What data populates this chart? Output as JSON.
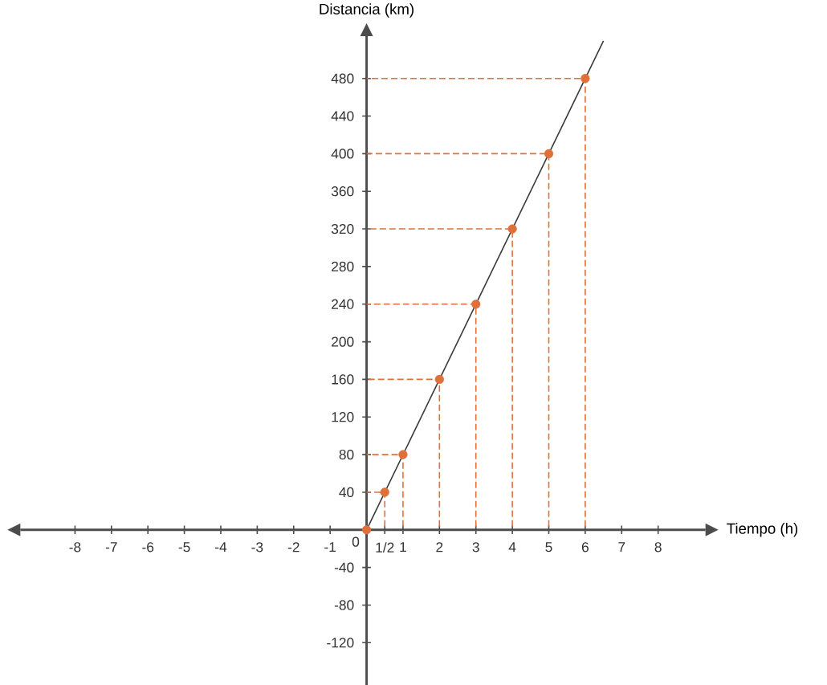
{
  "chart_data": {
    "type": "line",
    "xlabel": "Tiempo (h)",
    "ylabel": "Distancia (km)",
    "xlim": [
      -9.5,
      9.3
    ],
    "ylim": [
      -165,
      525
    ],
    "xticks": [
      -8,
      -7,
      -6,
      -5,
      -4,
      -3,
      -2,
      -1,
      {
        "value": 0.5,
        "label": "1/2"
      },
      1,
      2,
      3,
      4,
      5,
      6,
      7,
      8
    ],
    "annotations": [
      {
        "text": "0",
        "x": 0,
        "y": 0
      }
    ],
    "yticks": [
      -120,
      -80,
      -40,
      40,
      80,
      120,
      160,
      200,
      240,
      280,
      320,
      360,
      400,
      440,
      480
    ],
    "grid": false,
    "series": [
      {
        "color": "#e0703a",
        "line_style": "dashed",
        "marker": "none",
        "x": [
          0.5,
          0.5,
          0
        ],
        "values": [
          0,
          40,
          40
        ]
      },
      {
        "color": "#e0703a",
        "line_style": "dashed",
        "marker": "none",
        "x": [
          1,
          1,
          0
        ],
        "values": [
          0,
          80,
          80
        ]
      },
      {
        "color": "#e0703a",
        "line_style": "dashed",
        "marker": "none",
        "x": [
          2,
          2,
          0
        ],
        "values": [
          0,
          160,
          160
        ]
      },
      {
        "color": "#e0703a",
        "line_style": "dashed",
        "marker": "none",
        "x": [
          3,
          3,
          0
        ],
        "values": [
          0,
          240,
          240
        ]
      },
      {
        "color": "#e0703a",
        "line_style": "dashed",
        "marker": "none",
        "x": [
          4,
          4,
          0
        ],
        "values": [
          0,
          320,
          320
        ]
      },
      {
        "color": "#e0703a",
        "line_style": "dashed",
        "marker": "none",
        "x": [
          5,
          5,
          0
        ],
        "values": [
          0,
          400,
          400
        ]
      },
      {
        "color": "#e0703a",
        "line_style": "dashed",
        "marker": "none",
        "x": [
          6,
          6,
          0
        ],
        "values": [
          0,
          480,
          480
        ]
      },
      {
        "color": "#3a3a3a",
        "line_style": "solid",
        "marker": "none",
        "x": [
          0,
          6.5
        ],
        "values": [
          0,
          520
        ]
      },
      {
        "type": "scatter",
        "color": "#e0703a",
        "marker": "circle",
        "x": [
          0,
          0.5,
          1,
          2,
          3,
          4,
          5,
          6
        ],
        "values": [
          0,
          40,
          80,
          160,
          240,
          320,
          400,
          480
        ]
      }
    ]
  }
}
